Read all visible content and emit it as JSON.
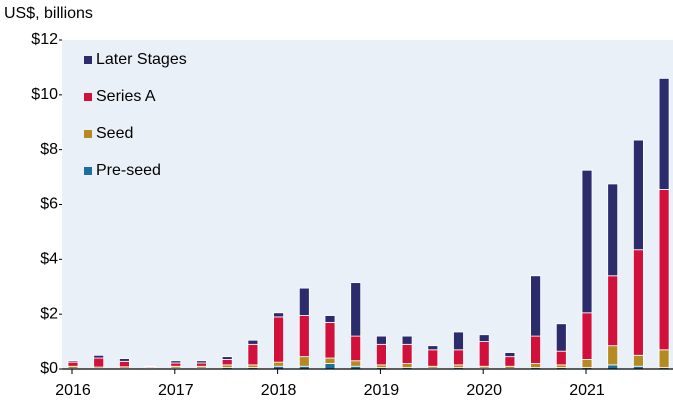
{
  "chart_data": {
    "type": "stacked_bar",
    "y_axis_label": "US$, billions",
    "categories": [
      "2016",
      null,
      null,
      null,
      "2017",
      null,
      null,
      null,
      "2018",
      null,
      null,
      null,
      "2019",
      null,
      null,
      null,
      "2020",
      null,
      null,
      null,
      "2021",
      null,
      null,
      null
    ],
    "series": [
      {
        "name": "Pre-seed",
        "color": "#1b6f9f",
        "values": [
          0.02,
          0.02,
          0.02,
          0.01,
          0.03,
          0.03,
          0.05,
          0.05,
          0.1,
          0.1,
          0.2,
          0.1,
          0.05,
          0.05,
          0.03,
          0.05,
          0.03,
          0.02,
          0.05,
          0.05,
          0.05,
          0.15,
          0.1,
          0.05
        ]
      },
      {
        "name": "Seed",
        "color": "#b38b22",
        "values": [
          0.08,
          0.05,
          0.06,
          0.03,
          0.07,
          0.07,
          0.1,
          0.1,
          0.15,
          0.35,
          0.2,
          0.2,
          0.1,
          0.15,
          0.07,
          0.1,
          0.07,
          0.08,
          0.15,
          0.1,
          0.3,
          0.7,
          0.4,
          0.65
        ]
      },
      {
        "name": "Series A",
        "color": "#d2103c",
        "values": [
          0.15,
          0.33,
          0.2,
          0.04,
          0.12,
          0.12,
          0.2,
          0.75,
          1.65,
          1.5,
          1.3,
          0.9,
          0.75,
          0.7,
          0.6,
          0.55,
          0.9,
          0.35,
          1.0,
          0.5,
          1.7,
          2.55,
          3.85,
          5.85
        ]
      },
      {
        "name": "Later Stages",
        "color": "#2c2c6c",
        "values": [
          0.05,
          0.1,
          0.1,
          0.02,
          0.08,
          0.08,
          0.1,
          0.15,
          0.15,
          1.0,
          0.25,
          1.95,
          0.3,
          0.3,
          0.15,
          0.65,
          0.25,
          0.15,
          2.2,
          1.0,
          5.2,
          3.35,
          4.0,
          4.05
        ]
      }
    ],
    "ylim": [
      0,
      12
    ],
    "yticks": [
      {
        "value": 0,
        "label": "$0"
      },
      {
        "value": 2,
        "label": "$2"
      },
      {
        "value": 4,
        "label": "$4"
      },
      {
        "value": 6,
        "label": "$6"
      },
      {
        "value": 8,
        "label": "$8"
      },
      {
        "value": 10,
        "label": "$10"
      },
      {
        "value": 12,
        "label": "$12"
      }
    ],
    "grid": false,
    "legend_position": "top-left"
  }
}
